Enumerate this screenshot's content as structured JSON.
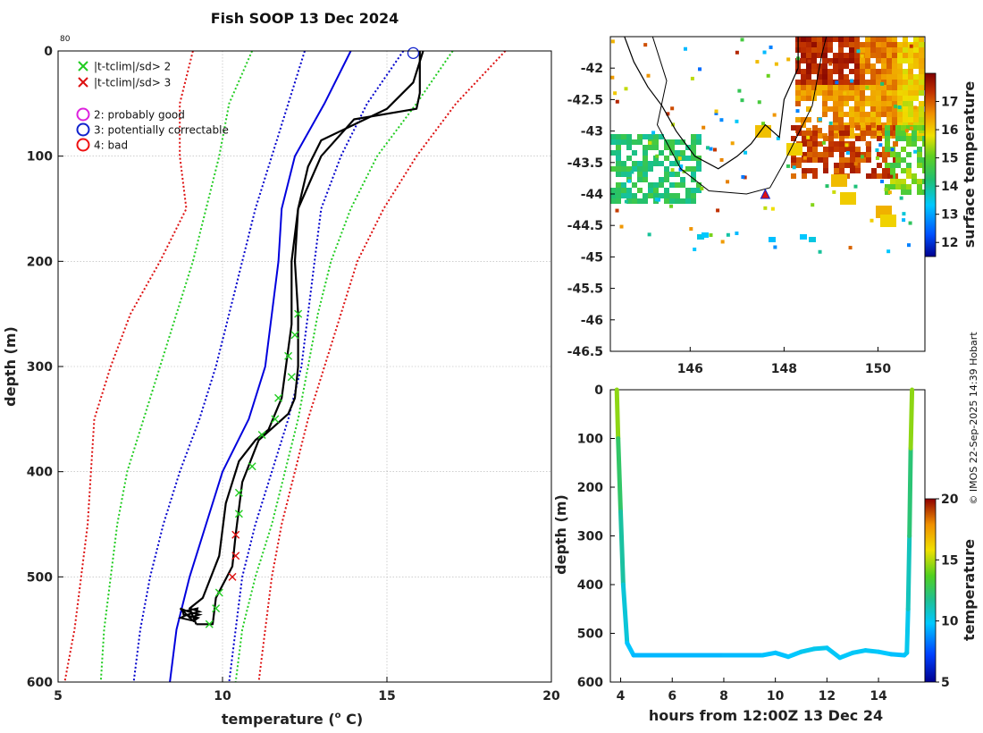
{
  "chart_data": [
    {
      "type": "line",
      "id": "profile",
      "title": "Fish SOOP 13 Dec 2024",
      "xlabel": "temperature (",
      "xlabel_unit": "o",
      "xlabel_end": " C)",
      "ylabel": "depth (m)",
      "corner_note": "80",
      "xlim": [
        5,
        20
      ],
      "ylim": [
        0,
        600
      ],
      "xticks": [
        5,
        10,
        15,
        20
      ],
      "yticks": [
        0,
        100,
        200,
        300,
        400,
        500,
        600
      ],
      "grid": true,
      "legend": [
        {
          "marker": "x",
          "color": "#22cc22",
          "label": "|t-tclim|/sd> 2"
        },
        {
          "marker": "x",
          "color": "#dd1111",
          "label": "|t-tclim|/sd> 3"
        },
        {
          "marker": "o",
          "color": "#dd22dd",
          "label": "2: probably good"
        },
        {
          "marker": "o",
          "color": "#1122cc",
          "label": "3: potentially correctable"
        },
        {
          "marker": "o",
          "color": "#ee1111",
          "label": "4: bad"
        }
      ],
      "climatology": {
        "depth": [
          0,
          50,
          100,
          150,
          200,
          250,
          300,
          350,
          400,
          450,
          500,
          550,
          600
        ],
        "series": [
          {
            "name": "clim mean",
            "color": "#0000dd",
            "style": "solid",
            "values": [
              13.9,
              13.1,
              12.2,
              11.8,
              11.7,
              11.5,
              11.3,
              10.8,
              10.0,
              9.5,
              9.0,
              8.6,
              8.4
            ]
          },
          {
            "name": "clim -1sd",
            "color": "#0000cc",
            "style": "dotted",
            "values": [
              12.5,
              12.0,
              11.5,
              11.0,
              10.6,
              10.2,
              9.8,
              9.3,
              8.7,
              8.2,
              7.8,
              7.5,
              7.3
            ]
          },
          {
            "name": "clim +1sd",
            "color": "#0000cc",
            "style": "dotted",
            "values": [
              15.5,
              14.4,
              13.6,
              13.0,
              12.8,
              12.6,
              12.4,
              12.0,
              11.5,
              11.0,
              10.6,
              10.4,
              10.2
            ]
          },
          {
            "name": "clim -2sd",
            "color": "#22cc22",
            "style": "dotted",
            "values": [
              10.9,
              10.2,
              9.9,
              9.5,
              9.1,
              8.6,
              8.1,
              7.6,
              7.1,
              6.8,
              6.6,
              6.4,
              6.3
            ]
          },
          {
            "name": "clim +2sd",
            "color": "#22cc22",
            "style": "dotted",
            "values": [
              17.0,
              15.9,
              14.7,
              13.9,
              13.3,
              12.9,
              12.6,
              12.3,
              11.9,
              11.5,
              11.0,
              10.6,
              10.4
            ]
          },
          {
            "name": "clim -3sd",
            "color": "#dd1111",
            "style": "dotted",
            "values": [
              9.1,
              8.7,
              8.7,
              8.9,
              8.1,
              7.2,
              6.6,
              6.1,
              6.0,
              5.9,
              5.7,
              5.5,
              5.2
            ]
          },
          {
            "name": "clim +3sd",
            "color": "#dd1111",
            "style": "dotted",
            "values": [
              18.6,
              17.1,
              15.9,
              14.9,
              14.1,
              13.6,
              13.1,
              12.6,
              12.2,
              11.8,
              11.5,
              11.3,
              11.1
            ]
          }
        ]
      },
      "observed": {
        "color": "#000000",
        "downcast": {
          "temps": [
            16.0,
            16.0,
            15.9,
            14.0,
            13.0,
            12.3,
            12.2,
            12.3,
            12.3,
            12.2,
            12.0,
            11.1,
            10.6,
            10.4,
            10.3,
            9.8,
            9.7,
            9.2
          ],
          "depths": [
            0,
            40,
            55,
            65,
            100,
            150,
            200,
            250,
            300,
            330,
            345,
            370,
            410,
            460,
            490,
            520,
            545,
            545
          ]
        },
        "upcast": {
          "temps": [
            9.2,
            9.0,
            9.4,
            9.9,
            10.1,
            10.5,
            11.0,
            11.4,
            11.8,
            12.1,
            12.1,
            12.3,
            12.6,
            13.0,
            14.0,
            15.0,
            15.8,
            16.1
          ],
          "depths": [
            545,
            530,
            520,
            480,
            430,
            390,
            370,
            360,
            330,
            260,
            200,
            150,
            110,
            85,
            70,
            55,
            30,
            0
          ]
        }
      },
      "flag_points": {
        "depths": [
          250,
          270,
          290,
          310,
          330,
          350,
          365,
          395,
          420,
          440,
          460,
          480,
          500,
          515,
          530,
          545
        ],
        "temps": [
          12.3,
          12.2,
          12.0,
          12.1,
          11.7,
          11.6,
          11.2,
          10.9,
          10.5,
          10.5,
          10.4,
          10.4,
          10.3,
          9.9,
          9.8,
          9.6
        ],
        "colors": [
          "#22cc22",
          "#22cc22",
          "#22cc22",
          "#22cc22",
          "#22cc22",
          "#22cc22",
          "#22cc22",
          "#22cc22",
          "#22cc22",
          "#22cc22",
          "#dd1111",
          "#dd1111",
          "#dd1111",
          "#22cc22",
          "#22cc22",
          "#22cc22"
        ]
      },
      "qc_circle": {
        "temp": 15.8,
        "depth": 2,
        "color": "#1122cc"
      }
    },
    {
      "type": "heatmap",
      "id": "map",
      "xlim": [
        144.3,
        151.0
      ],
      "ylim": [
        -46.5,
        -41.5
      ],
      "xticks": [
        146,
        148,
        150
      ],
      "yticks": [
        -42,
        -42.5,
        -43,
        -43.5,
        -44,
        -44.5,
        -45,
        -45.5,
        -46,
        -46.5
      ],
      "colorbar": {
        "label": "surface temperature",
        "range": [
          11.5,
          18.0
        ],
        "ticks": [
          12,
          13,
          14,
          15,
          16,
          17
        ]
      },
      "station": {
        "lon": 147.6,
        "lat": -44.0
      }
    },
    {
      "type": "line",
      "id": "timeseries",
      "xlabel": "hours from 12:00Z 13 Dec 24",
      "ylabel": "depth (m)",
      "xlim": [
        3.6,
        15.8
      ],
      "ylim": [
        0,
        600
      ],
      "xticks": [
        4,
        6,
        8,
        10,
        12,
        14
      ],
      "yticks": [
        0,
        100,
        200,
        300,
        400,
        500,
        600
      ],
      "colorbar": {
        "label": "temperature",
        "range": [
          5,
          20
        ],
        "ticks": [
          5,
          10,
          15,
          20
        ]
      },
      "hours": [
        3.85,
        3.9,
        4.0,
        4.1,
        4.25,
        4.5,
        6,
        8,
        9.5,
        10.0,
        10.5,
        11.0,
        11.5,
        12.0,
        12.5,
        13.0,
        13.5,
        14.0,
        14.5,
        15.0,
        15.1,
        15.15,
        15.2,
        15.25,
        15.3
      ],
      "depths": [
        0,
        100,
        250,
        400,
        520,
        545,
        545,
        545,
        545,
        540,
        548,
        538,
        532,
        530,
        550,
        540,
        535,
        538,
        543,
        545,
        540,
        450,
        300,
        120,
        0
      ],
      "temps": [
        16.0,
        13.0,
        12.0,
        11.0,
        10.0,
        9.5,
        9.5,
        9.5,
        9.6,
        9.8,
        9.6,
        10.0,
        10.2,
        10.1,
        9.8,
        9.9,
        10.0,
        9.9,
        9.7,
        9.6,
        9.8,
        10.5,
        11.5,
        13.0,
        16.0
      ]
    }
  ],
  "credit": "© IMOS 22-Sep-2025 14:39 Hobart"
}
